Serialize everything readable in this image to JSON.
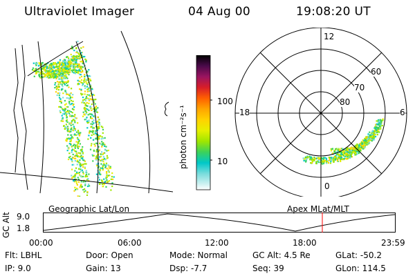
{
  "header": {
    "instrument": "Ultraviolet Imager",
    "date": "04 Aug 00",
    "time": "19:08:20 UT"
  },
  "colorbar": {
    "label": "photon cm⁻²s⁻¹",
    "ticks": [
      "100",
      "10"
    ],
    "scale": "log",
    "colors": [
      "#000000",
      "#6a0a5a",
      "#b0146e",
      "#d81e28",
      "#ff5a00",
      "#ffa500",
      "#ffd200",
      "#e6f000",
      "#a0e600",
      "#3cd25a",
      "#00c8c8",
      "#78dcdc",
      "#c8f0f0",
      "#ffffff"
    ]
  },
  "polar_plot": {
    "mlt_labels": [
      "12",
      "18",
      "6",
      "0"
    ],
    "lat_labels": [
      "60",
      "70",
      "80"
    ]
  },
  "timeline": {
    "ylabel": "GC Alt",
    "yticks": [
      "9.0",
      "1.8"
    ],
    "left_caption": "Geographic Lat/Lon",
    "right_caption": "Apex MLat/MLT",
    "time_ticks": [
      "00:00",
      "06:00",
      "12:00",
      "18:00",
      "23:59"
    ],
    "current_marker_time": "19:08:20",
    "marker_color": "#ff0000"
  },
  "info": {
    "flt": "Flt: LBHL",
    "ip": "IP:  9.0",
    "door": "Door: Open",
    "gain": "Gain: 13",
    "mode": "Mode: Normal",
    "dsp": "Dsp:   -7.7",
    "gcalt": "GC Alt: 4.5 Re",
    "seq": "Seq: 39",
    "glat": "GLat: -50.2",
    "glon": "GLon: 114.5"
  }
}
